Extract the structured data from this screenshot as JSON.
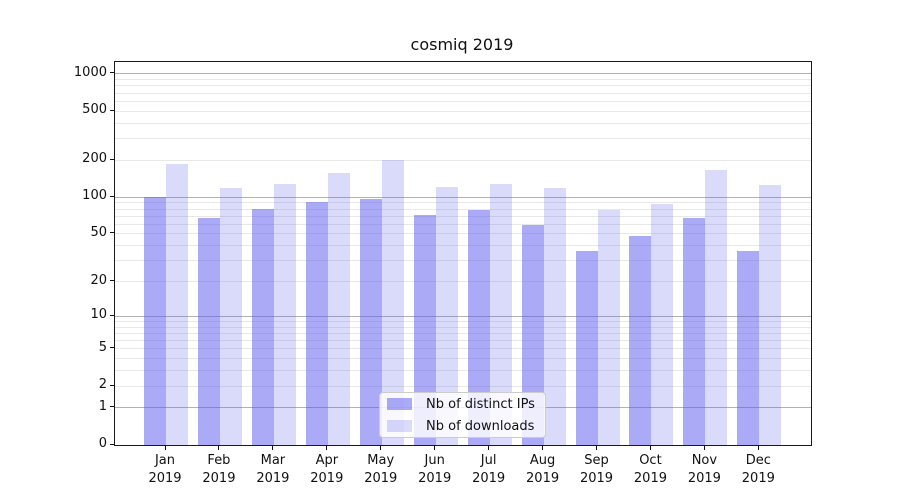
{
  "title": "cosmiq 2019",
  "chart_data": {
    "type": "bar",
    "title": "cosmiq 2019",
    "categories": [
      "Jan",
      "Feb",
      "Mar",
      "Apr",
      "May",
      "Jun",
      "Jul",
      "Aug",
      "Sep",
      "Oct",
      "Nov",
      "Dec"
    ],
    "category_year": "2019",
    "series": [
      {
        "name": "Nb of distinct IPs",
        "color": "#5555ee",
        "alpha": 0.5,
        "values": [
          100,
          67,
          80,
          92,
          96,
          72,
          79,
          59,
          36,
          48,
          67,
          36
        ]
      },
      {
        "name": "Nb of downloads",
        "color": "#5555ee",
        "alpha": 0.22,
        "values": [
          185,
          118,
          129,
          158,
          200,
          121,
          127,
          119,
          78,
          88,
          166,
          125
        ]
      }
    ],
    "yscale": "log1p",
    "yticks": [
      0,
      1,
      2,
      5,
      10,
      20,
      50,
      100,
      200,
      500,
      1000
    ],
    "ytick_labels": [
      "0",
      "1",
      "2",
      "5",
      "10",
      "20",
      "50",
      "100",
      "200",
      "500",
      "1000"
    ],
    "ylim": [
      0,
      1250
    ],
    "xlabel": "",
    "ylabel": "",
    "grid": true,
    "legend_position": "lower-center-inside",
    "colors": {
      "grid_major": "#b2b2b2",
      "grid_minor": "#e8e8e8",
      "spine": "#1a1a1a",
      "background": "#ffffff"
    }
  }
}
